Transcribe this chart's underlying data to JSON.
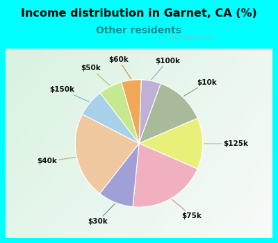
{
  "title": "Income distribution in Garnet, CA (%)",
  "subtitle": "Other residents",
  "title_color": "#000000",
  "subtitle_color": "#008b8b",
  "background_color": "#00ffff",
  "watermark": "ⓘ City-Data.com",
  "labels": [
    "$100k",
    "$10k",
    "$125k",
    "$75k",
    "$30k",
    "$40k",
    "$150k",
    "$50k",
    "$60k"
  ],
  "sizes": [
    5,
    13,
    13,
    20,
    9,
    22,
    7,
    6,
    5
  ],
  "colors": [
    "#c0b0d8",
    "#a8ba9a",
    "#e8f07a",
    "#f0b0c0",
    "#a0a0d8",
    "#f0c8a0",
    "#a8d0e8",
    "#c8e890",
    "#f0a858"
  ],
  "startangle": 88,
  "label_radii": 1.32,
  "line_colors": [
    "#b0a0cc",
    "#90a880",
    "#c8c860",
    "#e09090",
    "#8888b8",
    "#d8a878",
    "#88b8d0",
    "#a0c870",
    "#d09040"
  ]
}
